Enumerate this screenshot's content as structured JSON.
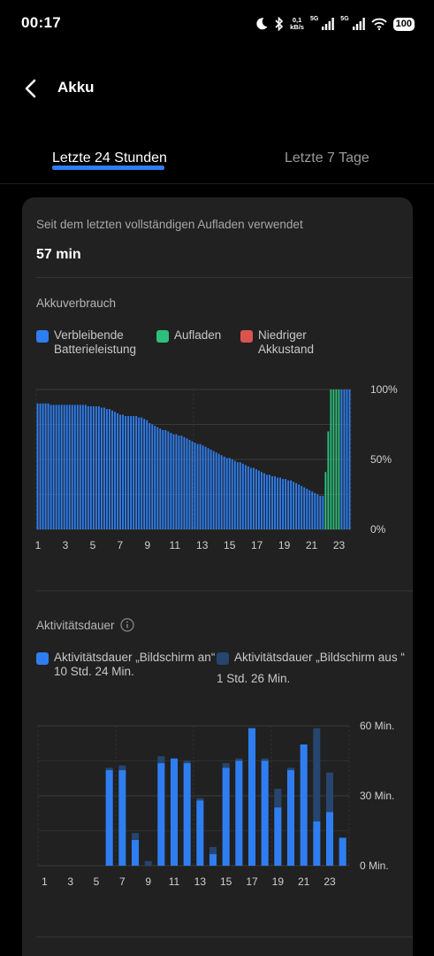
{
  "status_bar": {
    "time": "00:17",
    "net_speed_value": "0,1",
    "net_speed_unit": "kB/s",
    "sig1_label": "5G",
    "sig2_label": "5G",
    "battery": "100",
    "icons": [
      "moon-icon",
      "bluetooth-icon",
      "signal-icon",
      "signal-icon",
      "wifi-icon",
      "battery-icon"
    ]
  },
  "header": {
    "title": "Akku"
  },
  "tabs": [
    {
      "label": "Letzte 24 Stunden",
      "active": true
    },
    {
      "label": "Letzte 7 Tage",
      "active": false
    }
  ],
  "summary": {
    "caption": "Seit dem letzten vollständigen Aufladen verwendet",
    "duration": "57 min"
  },
  "usage": {
    "title": "Akkuverbrauch",
    "legend": [
      {
        "label": "Verbleibende Batterieleistung",
        "line1": "Verbleibende",
        "line2": "Batterieleistung",
        "color": "#2f7ef1"
      },
      {
        "label": "Aufladen",
        "line1": "Aufladen",
        "line2": "",
        "color": "#2cc07b"
      },
      {
        "label": "Niedriger Akkustand",
        "line1": "Niedriger",
        "line2": "Akkustand",
        "color": "#d9534f"
      }
    ]
  },
  "activity": {
    "title": "Aktivitätsdauer",
    "legend": [
      {
        "label": "Aktivitätsdauer „Bildschirm an“",
        "value": "10 Std. 24 Min.",
        "color": "#2f7ef1"
      },
      {
        "label": "Aktivitätsdauer „Bildschirm aus “",
        "value": "1 Std. 26 Min.",
        "color": "#26466f"
      }
    ]
  },
  "chart_data": [
    {
      "type": "bar",
      "title": "Akkuverbrauch",
      "y_unit": "%",
      "ylim": [
        0,
        100
      ],
      "y_ticks": [
        "100%",
        "50%",
        "0%"
      ],
      "x_tick_labels": [
        "1",
        "3",
        "5",
        "7",
        "9",
        "11",
        "13",
        "15",
        "17",
        "19",
        "21",
        "23"
      ],
      "x_range": [
        1,
        24
      ],
      "grid": true,
      "legend_position": "top",
      "series": [
        {
          "name": "Verbleibende Batterieleistung",
          "color": "#2f7ef1",
          "values": [
            90,
            90,
            90,
            90,
            90,
            89,
            89,
            89,
            89,
            89,
            89,
            89,
            89,
            89,
            89,
            89,
            89,
            89,
            89,
            88,
            88,
            88,
            88,
            88,
            87,
            87,
            86,
            86,
            85,
            84,
            83,
            82,
            82,
            81,
            81,
            81,
            81,
            81,
            80,
            80,
            79,
            78,
            76,
            75,
            74,
            73,
            72,
            71,
            71,
            70,
            69,
            68,
            68,
            67,
            67,
            66,
            65,
            64,
            63,
            62,
            61,
            61,
            60,
            59,
            58,
            57,
            56,
            55,
            54,
            53,
            52,
            51,
            51,
            50,
            49,
            48,
            48,
            47,
            46,
            45,
            44,
            44,
            43,
            42,
            41,
            40,
            39,
            39,
            38,
            38,
            37,
            37,
            36,
            36,
            35,
            35,
            34,
            33,
            32,
            31,
            30,
            29,
            28,
            27,
            26,
            25,
            24,
            24,
            0,
            0,
            0,
            0,
            0,
            0,
            100,
            100,
            100,
            100
          ]
        },
        {
          "name": "Aufladen",
          "color": "#2cc07b",
          "values": [
            0,
            0,
            0,
            0,
            0,
            0,
            0,
            0,
            0,
            0,
            0,
            0,
            0,
            0,
            0,
            0,
            0,
            0,
            0,
            0,
            0,
            0,
            0,
            0,
            0,
            0,
            0,
            0,
            0,
            0,
            0,
            0,
            0,
            0,
            0,
            0,
            0,
            0,
            0,
            0,
            0,
            0,
            0,
            0,
            0,
            0,
            0,
            0,
            0,
            0,
            0,
            0,
            0,
            0,
            0,
            0,
            0,
            0,
            0,
            0,
            0,
            0,
            0,
            0,
            0,
            0,
            0,
            0,
            0,
            0,
            0,
            0,
            0,
            0,
            0,
            0,
            0,
            0,
            0,
            0,
            0,
            0,
            0,
            0,
            0,
            0,
            0,
            0,
            0,
            0,
            0,
            0,
            0,
            0,
            0,
            0,
            0,
            0,
            0,
            0,
            0,
            0,
            0,
            0,
            0,
            0,
            0,
            0,
            41,
            70,
            100,
            100,
            100,
            100,
            0,
            0,
            0,
            0
          ]
        }
      ]
    },
    {
      "type": "bar",
      "title": "Aktivitätsdauer",
      "y_unit": "Min.",
      "ylim": [
        0,
        60
      ],
      "y_ticks": [
        "60 Min.",
        "30 Min.",
        "0 Min."
      ],
      "x_tick_labels": [
        "1",
        "3",
        "5",
        "7",
        "9",
        "11",
        "13",
        "15",
        "17",
        "19",
        "21",
        "23"
      ],
      "categories": [
        "1",
        "2",
        "3",
        "4",
        "5",
        "6",
        "7",
        "8",
        "9",
        "10",
        "11",
        "12",
        "13",
        "14",
        "15",
        "16",
        "17",
        "18",
        "19",
        "20",
        "21",
        "22",
        "23",
        "24"
      ],
      "stacked": true,
      "grid": true,
      "series": [
        {
          "name": "Aktivitätsdauer „Bildschirm an“",
          "color": "#2f7ef1",
          "values": [
            0,
            0,
            0,
            0,
            0,
            41,
            41,
            11,
            0,
            44,
            46,
            44,
            28,
            5,
            42,
            45,
            59,
            45,
            25,
            41,
            52,
            19,
            23,
            12
          ]
        },
        {
          "name": "Aktivitätsdauer „Bildschirm aus “",
          "color": "#26466f",
          "values": [
            0,
            0,
            0,
            0,
            0,
            1,
            2,
            3,
            2,
            3,
            0,
            1,
            1,
            3,
            2,
            1,
            0,
            1,
            8,
            1,
            0,
            40,
            17,
            0
          ]
        }
      ]
    }
  ]
}
